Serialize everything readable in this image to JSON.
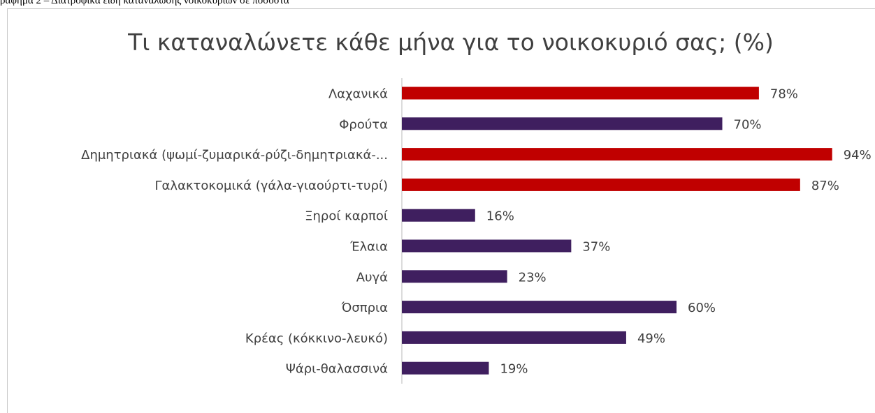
{
  "caption": "ραφημα 2 – Διατροφικά είδη κατανάλωσης νοικοκυριών σε ποσοστά",
  "chart_data": {
    "type": "bar",
    "orientation": "horizontal",
    "title": "Τι καταναλώνετε κάθε μήνα για το νοικοκυριό σας; (%)",
    "xlabel": "",
    "ylabel": "",
    "xlim": [
      0,
      100
    ],
    "grid": false,
    "legend": "none",
    "categories": [
      "Λαχανικά",
      "Φρούτα",
      "Δημητριακά (ψωμί-ζυμαρικά-ρύζι-δημητριακά-...",
      "Γαλακτοκομικά (γάλα-γιαούρτι-τυρί)",
      "Ξηροί καρποί",
      "Έλαια",
      "Αυγά",
      "Όσπρια",
      "Κρέας (κόκκινο-λευκό)",
      "Ψάρι-θαλασσινά"
    ],
    "values": [
      78,
      70,
      94,
      87,
      16,
      37,
      23,
      60,
      49,
      19
    ],
    "value_labels": [
      "78%",
      "70%",
      "94%",
      "87%",
      "16%",
      "37%",
      "23%",
      "60%",
      "49%",
      "19%"
    ],
    "highlighted": [
      true,
      false,
      true,
      true,
      false,
      false,
      false,
      false,
      false,
      false
    ],
    "colors": {
      "highlight": "#c00000",
      "default": "#3f1f5f",
      "text": "#404040",
      "axis": "#d0d0d0"
    }
  }
}
